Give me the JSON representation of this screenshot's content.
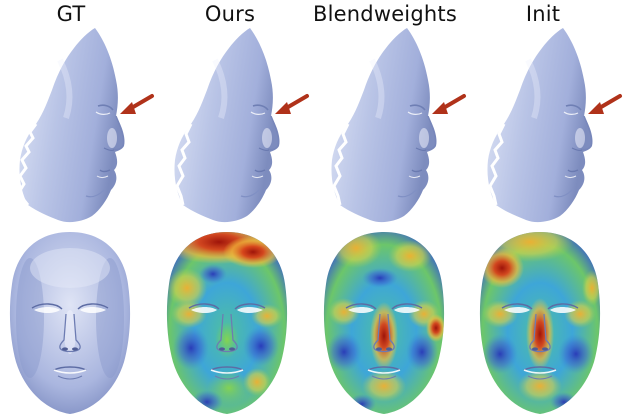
{
  "columns": [
    {
      "title": "GT",
      "side_view": "side-profile-render",
      "front_view": "grey-shaded-front-render"
    },
    {
      "title": "Ours",
      "side_view": "side-profile-render",
      "front_view": "error-heatmap-front-render"
    },
    {
      "title": "Blendweights",
      "side_view": "side-profile-render",
      "front_view": "error-heatmap-front-render"
    },
    {
      "title": "Init",
      "side_view": "side-profile-render",
      "front_view": "error-heatmap-front-render"
    }
  ],
  "colors": {
    "mesh_base": "#b9c4e6",
    "mesh_shadow": "#7d8cbe",
    "mesh_highlight": "#e4e9f7",
    "arrow": "#b0321a",
    "heat_low": "#2f3cc8",
    "heat_mid_low": "#38b6e4",
    "heat_mid": "#7fd35a",
    "heat_mid_high": "#f2c33a",
    "heat_high": "#b8180c"
  },
  "icons": {
    "arrow": "red-arrow-pointing-at-nose"
  }
}
